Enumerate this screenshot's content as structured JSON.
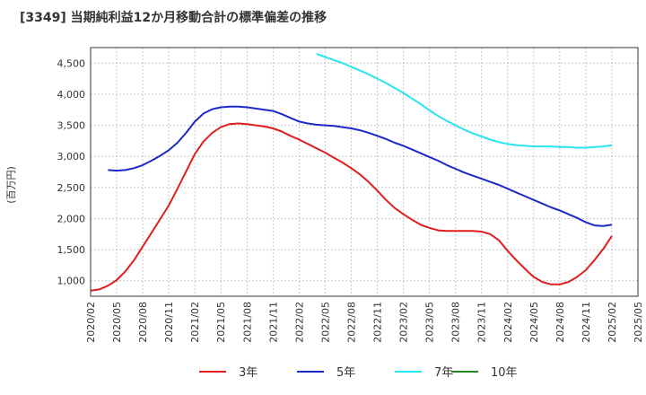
{
  "chart_data": {
    "type": "line",
    "title": "[3349]  当期純利益12か月移動合計の標準偏差の推移",
    "ylabel": "(百万円)",
    "xlabel": "",
    "y_ticks": [
      1000,
      1500,
      2000,
      2500,
      3000,
      3500,
      4000,
      4500
    ],
    "y_tick_labels": [
      "1,000",
      "1,500",
      "2,000",
      "2,500",
      "3,000",
      "3,500",
      "4,000",
      "4,500"
    ],
    "ylim": [
      750,
      4750
    ],
    "x_ticks": [
      "2020/02",
      "2020/05",
      "2020/08",
      "2020/11",
      "2021/02",
      "2021/05",
      "2021/08",
      "2021/11",
      "2022/02",
      "2022/05",
      "2022/08",
      "2022/11",
      "2023/02",
      "2023/05",
      "2023/08",
      "2023/11",
      "2024/02",
      "2024/05",
      "2024/08",
      "2024/11",
      "2025/02",
      "2025/05"
    ],
    "x_range": [
      "2020/02",
      "2025/05"
    ],
    "grid": true,
    "legend_position": "bottom",
    "series": [
      {
        "name": "3年",
        "color": "#e01e1e",
        "points": [
          [
            "2020/02",
            840
          ],
          [
            "2020/03",
            860
          ],
          [
            "2020/04",
            920
          ],
          [
            "2020/05",
            1010
          ],
          [
            "2020/06",
            1150
          ],
          [
            "2020/07",
            1330
          ],
          [
            "2020/08",
            1550
          ],
          [
            "2020/09",
            1770
          ],
          [
            "2020/10",
            1990
          ],
          [
            "2020/11",
            2210
          ],
          [
            "2020/12",
            2480
          ],
          [
            "2021/01",
            2760
          ],
          [
            "2021/02",
            3040
          ],
          [
            "2021/03",
            3240
          ],
          [
            "2021/04",
            3380
          ],
          [
            "2021/05",
            3470
          ],
          [
            "2021/06",
            3520
          ],
          [
            "2021/07",
            3530
          ],
          [
            "2021/08",
            3520
          ],
          [
            "2021/09",
            3500
          ],
          [
            "2021/10",
            3480
          ],
          [
            "2021/11",
            3450
          ],
          [
            "2021/12",
            3400
          ],
          [
            "2022/01",
            3330
          ],
          [
            "2022/02",
            3270
          ],
          [
            "2022/03",
            3200
          ],
          [
            "2022/04",
            3130
          ],
          [
            "2022/05",
            3060
          ],
          [
            "2022/06",
            2980
          ],
          [
            "2022/07",
            2900
          ],
          [
            "2022/08",
            2810
          ],
          [
            "2022/09",
            2710
          ],
          [
            "2022/10",
            2590
          ],
          [
            "2022/11",
            2450
          ],
          [
            "2022/12",
            2300
          ],
          [
            "2023/01",
            2170
          ],
          [
            "2023/02",
            2070
          ],
          [
            "2023/03",
            1980
          ],
          [
            "2023/04",
            1900
          ],
          [
            "2023/05",
            1850
          ],
          [
            "2023/06",
            1810
          ],
          [
            "2023/07",
            1800
          ],
          [
            "2023/08",
            1800
          ],
          [
            "2023/09",
            1800
          ],
          [
            "2023/10",
            1800
          ],
          [
            "2023/11",
            1790
          ],
          [
            "2023/12",
            1750
          ],
          [
            "2024/01",
            1650
          ],
          [
            "2024/02",
            1480
          ],
          [
            "2024/03",
            1330
          ],
          [
            "2024/04",
            1190
          ],
          [
            "2024/05",
            1060
          ],
          [
            "2024/06",
            980
          ],
          [
            "2024/07",
            940
          ],
          [
            "2024/08",
            940
          ],
          [
            "2024/09",
            980
          ],
          [
            "2024/10",
            1060
          ],
          [
            "2024/11",
            1170
          ],
          [
            "2024/12",
            1330
          ],
          [
            "2025/01",
            1510
          ],
          [
            "2025/02",
            1720
          ]
        ]
      },
      {
        "name": "5年",
        "color": "#1e28c8",
        "points": [
          [
            "2020/04",
            2780
          ],
          [
            "2020/05",
            2770
          ],
          [
            "2020/06",
            2780
          ],
          [
            "2020/07",
            2810
          ],
          [
            "2020/08",
            2860
          ],
          [
            "2020/09",
            2930
          ],
          [
            "2020/10",
            3010
          ],
          [
            "2020/11",
            3100
          ],
          [
            "2020/12",
            3220
          ],
          [
            "2021/01",
            3380
          ],
          [
            "2021/02",
            3560
          ],
          [
            "2021/03",
            3690
          ],
          [
            "2021/04",
            3760
          ],
          [
            "2021/05",
            3790
          ],
          [
            "2021/06",
            3800
          ],
          [
            "2021/07",
            3800
          ],
          [
            "2021/08",
            3790
          ],
          [
            "2021/09",
            3770
          ],
          [
            "2021/10",
            3750
          ],
          [
            "2021/11",
            3730
          ],
          [
            "2021/12",
            3680
          ],
          [
            "2022/01",
            3620
          ],
          [
            "2022/02",
            3560
          ],
          [
            "2022/03",
            3530
          ],
          [
            "2022/04",
            3510
          ],
          [
            "2022/05",
            3500
          ],
          [
            "2022/06",
            3490
          ],
          [
            "2022/07",
            3470
          ],
          [
            "2022/08",
            3450
          ],
          [
            "2022/09",
            3420
          ],
          [
            "2022/10",
            3380
          ],
          [
            "2022/11",
            3330
          ],
          [
            "2022/12",
            3280
          ],
          [
            "2023/01",
            3220
          ],
          [
            "2023/02",
            3170
          ],
          [
            "2023/03",
            3110
          ],
          [
            "2023/04",
            3050
          ],
          [
            "2023/05",
            2990
          ],
          [
            "2023/06",
            2930
          ],
          [
            "2023/07",
            2860
          ],
          [
            "2023/08",
            2800
          ],
          [
            "2023/09",
            2740
          ],
          [
            "2023/10",
            2690
          ],
          [
            "2023/11",
            2640
          ],
          [
            "2023/12",
            2590
          ],
          [
            "2024/01",
            2540
          ],
          [
            "2024/02",
            2480
          ],
          [
            "2024/03",
            2420
          ],
          [
            "2024/04",
            2360
          ],
          [
            "2024/05",
            2300
          ],
          [
            "2024/06",
            2240
          ],
          [
            "2024/07",
            2180
          ],
          [
            "2024/08",
            2130
          ],
          [
            "2024/09",
            2070
          ],
          [
            "2024/10",
            2010
          ],
          [
            "2024/11",
            1940
          ],
          [
            "2024/12",
            1890
          ],
          [
            "2025/01",
            1880
          ],
          [
            "2025/02",
            1900
          ]
        ]
      },
      {
        "name": "7年",
        "color": "#28e6f0",
        "points": [
          [
            "2022/04",
            4650
          ],
          [
            "2022/05",
            4600
          ],
          [
            "2022/06",
            4550
          ],
          [
            "2022/07",
            4500
          ],
          [
            "2022/08",
            4440
          ],
          [
            "2022/09",
            4380
          ],
          [
            "2022/10",
            4320
          ],
          [
            "2022/11",
            4250
          ],
          [
            "2022/12",
            4180
          ],
          [
            "2023/01",
            4100
          ],
          [
            "2023/02",
            4020
          ],
          [
            "2023/03",
            3930
          ],
          [
            "2023/04",
            3840
          ],
          [
            "2023/05",
            3740
          ],
          [
            "2023/06",
            3650
          ],
          [
            "2023/07",
            3570
          ],
          [
            "2023/08",
            3500
          ],
          [
            "2023/09",
            3430
          ],
          [
            "2023/10",
            3370
          ],
          [
            "2023/11",
            3320
          ],
          [
            "2023/12",
            3270
          ],
          [
            "2024/01",
            3230
          ],
          [
            "2024/02",
            3200
          ],
          [
            "2024/03",
            3180
          ],
          [
            "2024/04",
            3170
          ],
          [
            "2024/05",
            3160
          ],
          [
            "2024/06",
            3160
          ],
          [
            "2024/07",
            3160
          ],
          [
            "2024/08",
            3150
          ],
          [
            "2024/09",
            3150
          ],
          [
            "2024/10",
            3140
          ],
          [
            "2024/11",
            3140
          ],
          [
            "2024/12",
            3150
          ],
          [
            "2025/01",
            3160
          ],
          [
            "2025/02",
            3180
          ]
        ]
      },
      {
        "name": "10年",
        "color": "#1e8c1e",
        "points": []
      }
    ]
  }
}
